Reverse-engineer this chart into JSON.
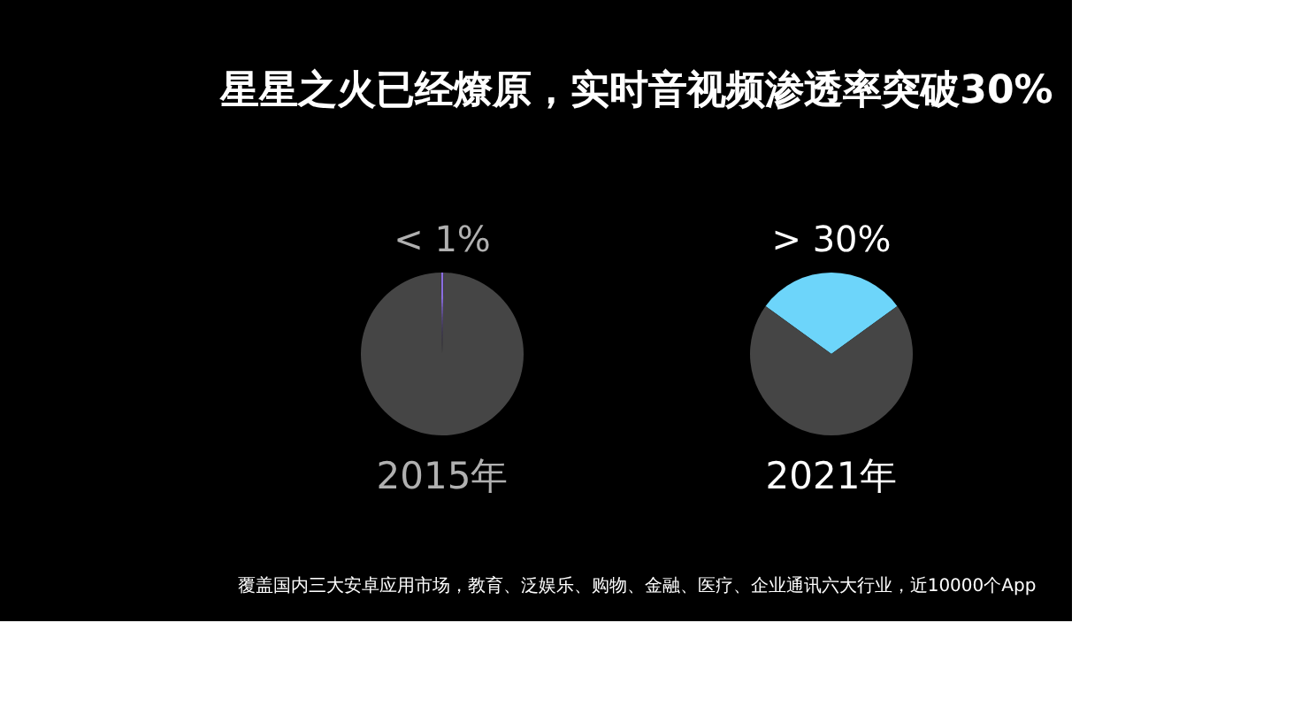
{
  "chart_data": [
    {
      "type": "pie",
      "title": "星星之火已经燎原，实时音视频渗透率突破30%",
      "xlabel": "2015年",
      "categories": [
        null,
        null
      ],
      "values": [
        0.5,
        99.5
      ],
      "colors": [
        "#8a6de0",
        "#454545"
      ],
      "value_labels": [
        "< 1%",
        null
      ],
      "annotations": [
        "覆盖国内三大安卓应用市场，教育、泛娱乐、购物、金融、医疗、企业通讯六大行业，近10000个App"
      ]
    },
    {
      "type": "pie",
      "xlabel": "2021年",
      "categories": [
        null,
        null
      ],
      "values": [
        30,
        70
      ],
      "colors": [
        "#6dd5fa",
        "#454545"
      ],
      "value_labels": [
        "> 30%",
        null
      ]
    }
  ]
}
